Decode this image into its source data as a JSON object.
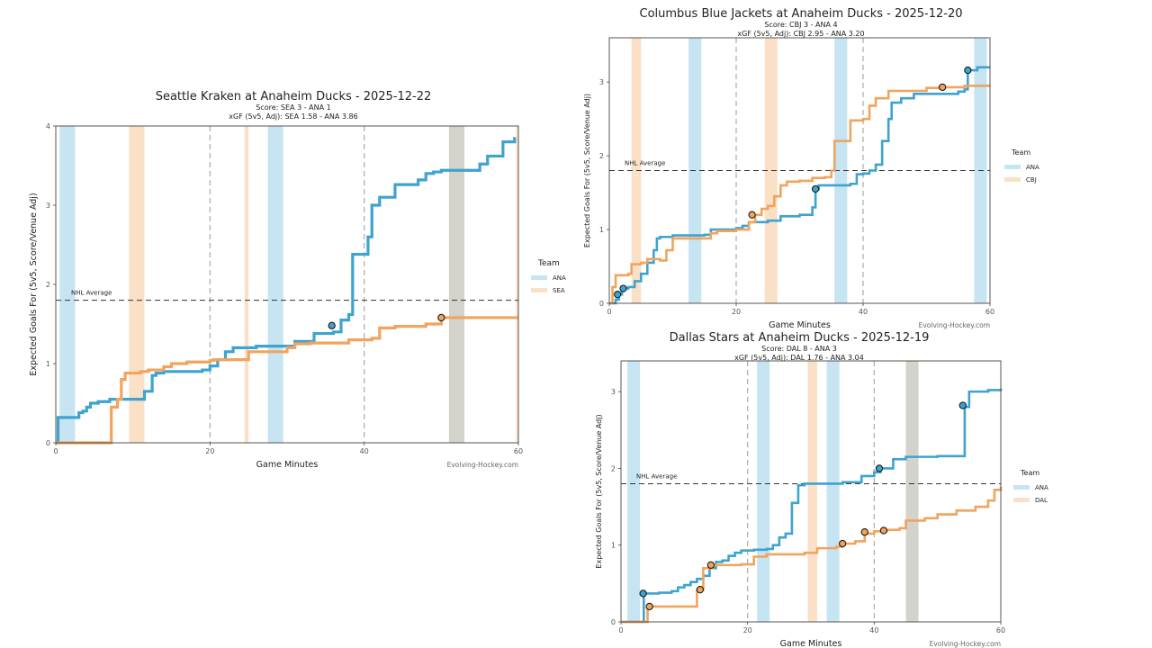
{
  "colors": {
    "ana": "#3ea3cf",
    "opp": "#f0a45d",
    "ana_band": "#c6e4f2",
    "opp_band": "#fbe0c8",
    "gray_band": "#d3d3cb"
  },
  "legend": {
    "title": "Team"
  },
  "chart_data": [
    {
      "type": "line",
      "title": "Seattle Kraken at Anaheim Ducks - 2025-12-22",
      "score_line": "Score: SEA 3 - ANA 1",
      "xgf_line": "xGF (5v5, Adj): SEA 1.58 - ANA 3.86",
      "xlabel": "Game Minutes",
      "ylabel": "Expected Goals For (5v5, Score/Venue Adj)",
      "xlim": [
        0,
        60
      ],
      "ylim": [
        0,
        4
      ],
      "xticks": [
        "0",
        "20",
        "40",
        "60"
      ],
      "yticks": [
        "0",
        "1",
        "2",
        "3",
        "4"
      ],
      "nhl_average": 1.8,
      "nhl_average_label": "NHL Average",
      "period_lines": [
        20,
        40
      ],
      "credit": "Evolving-Hockey.com",
      "legend_entries": [
        "ANA",
        "SEA"
      ],
      "bands": [
        {
          "team": "ana",
          "x0": 0.5,
          "x1": 2.5
        },
        {
          "team": "opp",
          "x0": 9.5,
          "x1": 11.5
        },
        {
          "team": "opp",
          "x0": 24.5,
          "x1": 25.0
        },
        {
          "team": "ana",
          "x0": 27.5,
          "x1": 29.5
        },
        {
          "team": "gray",
          "x0": 51.0,
          "x1": 53.0
        },
        {
          "team": "opp",
          "x0": 59.7,
          "x1": 60.0
        }
      ],
      "series": [
        {
          "name": "ANA",
          "team": "ana",
          "points": [
            [
              0,
              0
            ],
            [
              0.3,
              0.32
            ],
            [
              2.0,
              0.32
            ],
            [
              2.2,
              0.32
            ],
            [
              3.0,
              0.38
            ],
            [
              3.5,
              0.4
            ],
            [
              4.0,
              0.45
            ],
            [
              4.5,
              0.5
            ],
            [
              5.5,
              0.52
            ],
            [
              7.0,
              0.55
            ],
            [
              11.5,
              0.65
            ],
            [
              12.5,
              0.85
            ],
            [
              13.0,
              0.88
            ],
            [
              14.0,
              0.9
            ],
            [
              19.0,
              0.92
            ],
            [
              20.0,
              0.97
            ],
            [
              21.0,
              1.05
            ],
            [
              22.0,
              1.15
            ],
            [
              23.0,
              1.2
            ],
            [
              26.0,
              1.22
            ],
            [
              31.0,
              1.28
            ],
            [
              33.5,
              1.38
            ],
            [
              36.0,
              1.4
            ],
            [
              37.0,
              1.55
            ],
            [
              38.0,
              1.62
            ],
            [
              38.5,
              2.38
            ],
            [
              40.5,
              2.6
            ],
            [
              41.0,
              3.0
            ],
            [
              42.0,
              3.1
            ],
            [
              44.0,
              3.26
            ],
            [
              47.0,
              3.32
            ],
            [
              48.0,
              3.4
            ],
            [
              49.0,
              3.42
            ],
            [
              50.0,
              3.44
            ],
            [
              55.0,
              3.52
            ],
            [
              56.0,
              3.62
            ],
            [
              58.0,
              3.8
            ],
            [
              59.5,
              3.86
            ]
          ]
        },
        {
          "name": "SEA",
          "team": "opp",
          "points": [
            [
              0,
              0
            ],
            [
              7.0,
              0.0
            ],
            [
              7.2,
              0.45
            ],
            [
              8.0,
              0.55
            ],
            [
              8.5,
              0.8
            ],
            [
              9.0,
              0.88
            ],
            [
              11.0,
              0.9
            ],
            [
              12.0,
              0.92
            ],
            [
              14.0,
              0.96
            ],
            [
              15.0,
              1.0
            ],
            [
              17.0,
              1.02
            ],
            [
              20.0,
              1.04
            ],
            [
              20.5,
              1.05
            ],
            [
              25.0,
              1.15
            ],
            [
              30.0,
              1.2
            ],
            [
              31.0,
              1.25
            ],
            [
              33.0,
              1.26
            ],
            [
              38.0,
              1.3
            ],
            [
              41.0,
              1.32
            ],
            [
              42.0,
              1.45
            ],
            [
              44.0,
              1.47
            ],
            [
              48.0,
              1.5
            ],
            [
              50.0,
              1.58
            ],
            [
              60.0,
              1.58
            ]
          ]
        }
      ],
      "goals": [
        {
          "team": "ana",
          "x": 35.8,
          "y": 1.48
        },
        {
          "team": "opp",
          "x": 50.0,
          "y": 1.58
        }
      ]
    },
    {
      "type": "line",
      "title": "Columbus Blue Jackets at Anaheim Ducks - 2025-12-20",
      "score_line": "Score: CBJ 3 - ANA 4",
      "xgf_line": "xGF (5v5, Adj): CBJ 2.95 - ANA 3.20",
      "xlabel": "Game Minutes",
      "ylabel": "Expected Goals For (5v5, Score/Venue Adj)",
      "xlim": [
        0,
        60
      ],
      "ylim": [
        0,
        3.6
      ],
      "xticks": [
        "0",
        "20",
        "40",
        "60"
      ],
      "yticks": [
        "0",
        "1",
        "2",
        "3"
      ],
      "nhl_average": 1.8,
      "nhl_average_label": "NHL Average",
      "period_lines": [
        20,
        40
      ],
      "credit": "Evolving-Hockey.com",
      "legend_entries": [
        "ANA",
        "CBJ"
      ],
      "bands": [
        {
          "team": "opp",
          "x0": 3.5,
          "x1": 5.0
        },
        {
          "team": "ana",
          "x0": 12.5,
          "x1": 14.5
        },
        {
          "team": "opp",
          "x0": 24.5,
          "x1": 26.5
        },
        {
          "team": "ana",
          "x0": 35.5,
          "x1": 37.5
        },
        {
          "team": "ana",
          "x0": 57.5,
          "x1": 59.5
        }
      ],
      "series": [
        {
          "name": "ANA",
          "team": "ana",
          "points": [
            [
              0,
              0
            ],
            [
              1.0,
              0.05
            ],
            [
              1.5,
              0.12
            ],
            [
              2.0,
              0.2
            ],
            [
              3.0,
              0.22
            ],
            [
              4.0,
              0.3
            ],
            [
              5.0,
              0.4
            ],
            [
              6.0,
              0.55
            ],
            [
              7.0,
              0.72
            ],
            [
              7.5,
              0.88
            ],
            [
              8.0,
              0.9
            ],
            [
              10.0,
              0.92
            ],
            [
              15.0,
              0.93
            ],
            [
              16.0,
              1.0
            ],
            [
              20.0,
              1.02
            ],
            [
              21.0,
              1.05
            ],
            [
              22.0,
              1.1
            ],
            [
              25.0,
              1.12
            ],
            [
              27.0,
              1.18
            ],
            [
              30.0,
              1.2
            ],
            [
              32.0,
              1.3
            ],
            [
              32.5,
              1.55
            ],
            [
              33.0,
              1.6
            ],
            [
              38.0,
              1.62
            ],
            [
              39.0,
              1.75
            ],
            [
              40.0,
              1.76
            ],
            [
              41.0,
              1.8
            ],
            [
              42.0,
              1.88
            ],
            [
              43.0,
              2.2
            ],
            [
              44.0,
              2.5
            ],
            [
              44.5,
              2.72
            ],
            [
              46.0,
              2.78
            ],
            [
              48.0,
              2.84
            ],
            [
              55.0,
              2.87
            ],
            [
              56.0,
              2.9
            ],
            [
              56.5,
              3.16
            ],
            [
              58.0,
              3.2
            ],
            [
              60.0,
              3.2
            ]
          ]
        },
        {
          "name": "CBJ",
          "team": "opp",
          "points": [
            [
              0,
              0
            ],
            [
              0.5,
              0.22
            ],
            [
              1.0,
              0.38
            ],
            [
              3.0,
              0.4
            ],
            [
              3.5,
              0.53
            ],
            [
              5.0,
              0.55
            ],
            [
              6.0,
              0.6
            ],
            [
              8.0,
              0.58
            ],
            [
              9.0,
              0.72
            ],
            [
              10.0,
              0.88
            ],
            [
              16.0,
              0.95
            ],
            [
              17.0,
              0.98
            ],
            [
              20.0,
              1.0
            ],
            [
              22.0,
              1.1
            ],
            [
              23.0,
              1.2
            ],
            [
              24.0,
              1.28
            ],
            [
              25.0,
              1.32
            ],
            [
              26.0,
              1.45
            ],
            [
              27.0,
              1.6
            ],
            [
              28.0,
              1.65
            ],
            [
              30.0,
              1.66
            ],
            [
              32.0,
              1.7
            ],
            [
              34.0,
              1.71
            ],
            [
              35.0,
              1.8
            ],
            [
              35.5,
              2.2
            ],
            [
              38.0,
              2.48
            ],
            [
              40.0,
              2.5
            ],
            [
              41.0,
              2.68
            ],
            [
              42.0,
              2.78
            ],
            [
              44.0,
              2.88
            ],
            [
              50.0,
              2.92
            ],
            [
              52.0,
              2.93
            ],
            [
              56.0,
              2.95
            ],
            [
              60.0,
              2.95
            ]
          ]
        }
      ],
      "goals": [
        {
          "team": "ana",
          "x": 1.3,
          "y": 0.12
        },
        {
          "team": "ana",
          "x": 2.2,
          "y": 0.2
        },
        {
          "team": "opp",
          "x": 22.5,
          "y": 1.2
        },
        {
          "team": "ana",
          "x": 32.5,
          "y": 1.55
        },
        {
          "team": "opp",
          "x": 52.5,
          "y": 2.93
        },
        {
          "team": "ana",
          "x": 56.5,
          "y": 3.16
        }
      ]
    },
    {
      "type": "line",
      "title": "Dallas Stars at Anaheim Ducks - 2025-12-19",
      "score_line": "Score: DAL 8 - ANA 3",
      "xgf_line": "xGF (5v5, Adj): DAL 1.76 - ANA 3.04",
      "xlabel": "Game Minutes",
      "ylabel": "Expected Goals For (5v5, Score/Venue Adj)",
      "xlim": [
        0,
        60
      ],
      "ylim": [
        0,
        3.4
      ],
      "xticks": [
        "0",
        "20",
        "40",
        "60"
      ],
      "yticks": [
        "0",
        "1",
        "2",
        "3"
      ],
      "nhl_average": 1.8,
      "nhl_average_label": "NHL Average",
      "period_lines": [
        20,
        40
      ],
      "credit": "Evolving-Hockey.com",
      "legend_entries": [
        "ANA",
        "DAL"
      ],
      "bands": [
        {
          "team": "ana",
          "x0": 1.0,
          "x1": 3.0
        },
        {
          "team": "ana",
          "x0": 21.5,
          "x1": 23.5
        },
        {
          "team": "opp",
          "x0": 29.5,
          "x1": 31.0
        },
        {
          "team": "ana",
          "x0": 32.5,
          "x1": 34.5
        },
        {
          "team": "gray",
          "x0": 45.0,
          "x1": 47.0
        }
      ],
      "series": [
        {
          "name": "ANA",
          "team": "ana",
          "points": [
            [
              0,
              0
            ],
            [
              3.5,
              0.0
            ],
            [
              3.6,
              0.37
            ],
            [
              6.0,
              0.38
            ],
            [
              8.0,
              0.4
            ],
            [
              9.0,
              0.45
            ],
            [
              10.0,
              0.48
            ],
            [
              11.0,
              0.52
            ],
            [
              12.0,
              0.56
            ],
            [
              13.0,
              0.6
            ],
            [
              14.0,
              0.7
            ],
            [
              15.0,
              0.78
            ],
            [
              16.0,
              0.8
            ],
            [
              17.0,
              0.86
            ],
            [
              18.0,
              0.9
            ],
            [
              19.0,
              0.93
            ],
            [
              21.0,
              0.94
            ],
            [
              23.0,
              0.95
            ],
            [
              24.0,
              1.0
            ],
            [
              25.0,
              1.1
            ],
            [
              26.0,
              1.15
            ],
            [
              27.0,
              1.55
            ],
            [
              28.0,
              1.78
            ],
            [
              29.0,
              1.8
            ],
            [
              35.0,
              1.82
            ],
            [
              38.0,
              1.9
            ],
            [
              40.0,
              1.95
            ],
            [
              41.0,
              2.0
            ],
            [
              43.0,
              2.12
            ],
            [
              45.0,
              2.15
            ],
            [
              50.0,
              2.16
            ],
            [
              54.0,
              2.16
            ],
            [
              54.3,
              2.8
            ],
            [
              55.0,
              3.0
            ],
            [
              58.0,
              3.02
            ],
            [
              60.0,
              3.04
            ]
          ]
        },
        {
          "name": "DAL",
          "team": "opp",
          "points": [
            [
              0,
              0
            ],
            [
              4.0,
              0.0
            ],
            [
              4.2,
              0.2
            ],
            [
              9.0,
              0.2
            ],
            [
              12.0,
              0.42
            ],
            [
              13.0,
              0.7
            ],
            [
              14.5,
              0.74
            ],
            [
              19.0,
              0.75
            ],
            [
              21.0,
              0.85
            ],
            [
              23.0,
              0.88
            ],
            [
              29.0,
              0.9
            ],
            [
              31.0,
              0.96
            ],
            [
              34.0,
              0.98
            ],
            [
              35.0,
              1.02
            ],
            [
              37.0,
              1.05
            ],
            [
              38.5,
              1.15
            ],
            [
              40.0,
              1.18
            ],
            [
              42.0,
              1.2
            ],
            [
              44.0,
              1.22
            ],
            [
              45.0,
              1.32
            ],
            [
              48.0,
              1.35
            ],
            [
              50.0,
              1.4
            ],
            [
              53.0,
              1.45
            ],
            [
              56.0,
              1.5
            ],
            [
              58.0,
              1.58
            ],
            [
              59.0,
              1.72
            ],
            [
              60.0,
              1.76
            ]
          ]
        }
      ],
      "goals": [
        {
          "team": "ana",
          "x": 3.5,
          "y": 0.37
        },
        {
          "team": "opp",
          "x": 4.5,
          "y": 0.2
        },
        {
          "team": "opp",
          "x": 12.5,
          "y": 0.42
        },
        {
          "team": "opp",
          "x": 14.2,
          "y": 0.74
        },
        {
          "team": "opp",
          "x": 35.0,
          "y": 1.02
        },
        {
          "team": "opp",
          "x": 38.5,
          "y": 1.17
        },
        {
          "team": "ana",
          "x": 40.8,
          "y": 2.0
        },
        {
          "team": "opp",
          "x": 41.5,
          "y": 1.19
        },
        {
          "team": "ana",
          "x": 54.0,
          "y": 2.82
        }
      ]
    }
  ]
}
